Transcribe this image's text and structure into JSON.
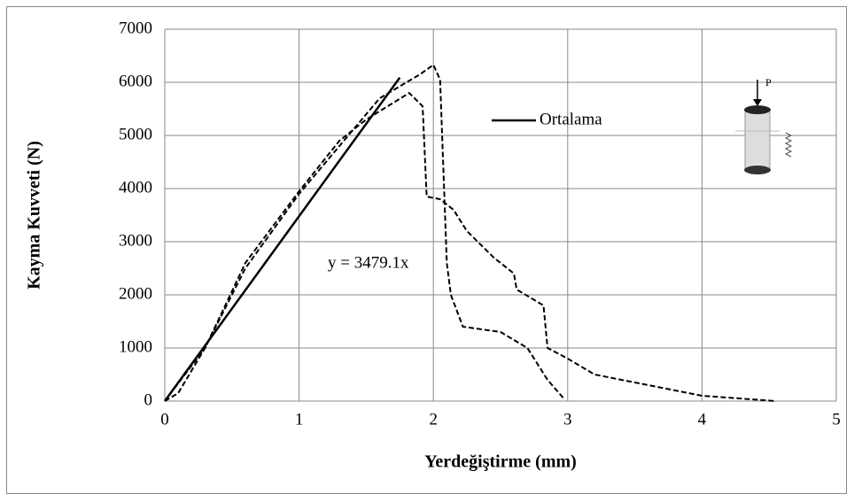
{
  "chart_data": {
    "type": "line",
    "xlabel": "Yerdeğiştirme (mm)",
    "ylabel": "Kayma Kuvveti (N)",
    "annotation": "y = 3479.1x",
    "inset_label": "P",
    "xlim": [
      0,
      5
    ],
    "xticks": [
      0,
      1,
      2,
      3,
      4,
      5
    ],
    "ylim": [
      0,
      7000
    ],
    "yticks": [
      0,
      1000,
      2000,
      3000,
      4000,
      5000,
      6000,
      7000
    ],
    "grid": true,
    "legend_position": "upper right",
    "series": [
      {
        "name": "Ortalama",
        "color": "#000000",
        "style": "solid",
        "x": [
          0,
          1.75
        ],
        "values": [
          0,
          6090
        ]
      },
      {
        "color": "#000000",
        "style": "dashed",
        "x": [
          0,
          0.1,
          0.3,
          0.6,
          1.0,
          1.3,
          1.6,
          1.9,
          2.0,
          2.05,
          2.1,
          2.13,
          2.22,
          2.5,
          2.7,
          2.85,
          2.97
        ],
        "values": [
          0,
          150,
          1000,
          2500,
          3900,
          4800,
          5700,
          6150,
          6330,
          6050,
          2600,
          2000,
          1400,
          1300,
          1000,
          400,
          50
        ]
      },
      {
        "color": "#000000",
        "style": "dashed",
        "x": [
          0,
          0.3,
          0.6,
          1.0,
          1.3,
          1.5,
          1.82,
          1.92,
          1.95,
          2.05,
          2.15,
          2.25,
          2.45,
          2.6,
          2.62,
          2.82,
          2.85,
          3.0,
          3.2,
          4.0,
          4.55
        ],
        "values": [
          0,
          1000,
          2600,
          3950,
          4900,
          5300,
          5800,
          5550,
          3850,
          3800,
          3600,
          3200,
          2700,
          2400,
          2100,
          1800,
          1000,
          800,
          500,
          100,
          0
        ]
      }
    ]
  }
}
